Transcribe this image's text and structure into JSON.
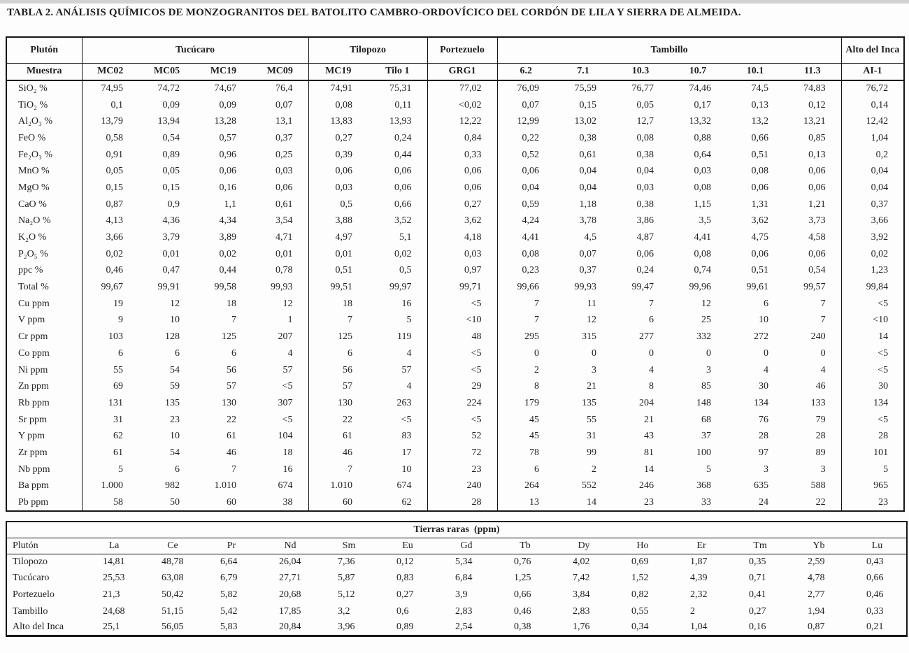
{
  "title": "TABLA 2. ANÁLISIS QUÍMICOS DE MONZOGRANITOS DEL BATOLITO CAMBRO-ORDOVÍCICO DEL CORDÓN DE LILA Y SIERRA DE ALMEIDA.",
  "main_table": {
    "groups": [
      {
        "label": "Plutón",
        "span": 1
      },
      {
        "label": "Tucúcaro",
        "span": 4
      },
      {
        "label": "Tilopozo",
        "span": 2
      },
      {
        "label": "Portezuelo",
        "span": 1
      },
      {
        "label": "Tambillo",
        "span": 6
      },
      {
        "label": "Alto del Inca",
        "span": 1
      }
    ],
    "sample_row_label": "Muestra",
    "samples": [
      "MC02",
      "MC05",
      "MC19",
      "MC09",
      "MC19",
      "Tilo 1",
      "GRG1",
      "6.2",
      "7.1",
      "10.3",
      "10.7",
      "10.1",
      "11.3",
      "AI-1"
    ],
    "rows": [
      {
        "label": "SiO₂ %",
        "values": [
          "74,95",
          "74,72",
          "74,67",
          "76,4",
          "74,91",
          "75,31",
          "77,02",
          "76,09",
          "75,59",
          "76,77",
          "74,46",
          "74,5",
          "74,83",
          "76,72"
        ]
      },
      {
        "label": "TiO₂ %",
        "values": [
          "0,1",
          "0,09",
          "0,09",
          "0,07",
          "0,08",
          "0,11",
          "<0,02",
          "0,07",
          "0,15",
          "0,05",
          "0,17",
          "0,13",
          "0,12",
          "0,14"
        ]
      },
      {
        "label": "Al₂O₃ %",
        "values": [
          "13,79",
          "13,94",
          "13,28",
          "13,1",
          "13,83",
          "13,93",
          "12,22",
          "12,99",
          "13,02",
          "12,7",
          "13,32",
          "13,2",
          "13,21",
          "12,42"
        ]
      },
      {
        "label": "FeO %",
        "values": [
          "0,58",
          "0,54",
          "0,57",
          "0,37",
          "0,27",
          "0,24",
          "0,84",
          "0,22",
          "0,38",
          "0,08",
          "0,88",
          "0,66",
          "0,85",
          "1,04"
        ]
      },
      {
        "label": "Fe₂O₃ %",
        "values": [
          "0,91",
          "0,89",
          "0,96",
          "0,25",
          "0,39",
          "0,44",
          "0,33",
          "0,52",
          "0,61",
          "0,38",
          "0,64",
          "0,51",
          "0,13",
          "0,2"
        ]
      },
      {
        "label": "MnO %",
        "values": [
          "0,05",
          "0,05",
          "0,06",
          "0,03",
          "0,06",
          "0,06",
          "0,06",
          "0,06",
          "0,04",
          "0,04",
          "0,03",
          "0,08",
          "0,06",
          "0,04"
        ]
      },
      {
        "label": "MgO %",
        "values": [
          "0,15",
          "0,15",
          "0,16",
          "0,06",
          "0,03",
          "0,06",
          "0,06",
          "0,04",
          "0,04",
          "0,03",
          "0,08",
          "0,06",
          "0,06",
          "0,04"
        ]
      },
      {
        "label": "CaO %",
        "values": [
          "0,87",
          "0,9",
          "1,1",
          "0,61",
          "0,5",
          "0,66",
          "0,27",
          "0,59",
          "1,18",
          "0,38",
          "1,15",
          "1,31",
          "1,21",
          "0,37"
        ]
      },
      {
        "label": "Na₂O %",
        "values": [
          "4,13",
          "4,36",
          "4,34",
          "3,54",
          "3,88",
          "3,52",
          "3,62",
          "4,24",
          "3,78",
          "3,86",
          "3,5",
          "3,62",
          "3,73",
          "3,66"
        ]
      },
      {
        "label": "K₂O %",
        "values": [
          "3,66",
          "3,79",
          "3,89",
          "4,71",
          "4,97",
          "5,1",
          "4,18",
          "4,41",
          "4,5",
          "4,87",
          "4,41",
          "4,75",
          "4,58",
          "3,92"
        ]
      },
      {
        "label": "P₂O₅ %",
        "values": [
          "0,02",
          "0,01",
          "0,02",
          "0,01",
          "0,01",
          "0,02",
          "0,03",
          "0,08",
          "0,07",
          "0,06",
          "0,08",
          "0,06",
          "0,06",
          "0,02"
        ]
      },
      {
        "label": "ppc %",
        "values": [
          "0,46",
          "0,47",
          "0,44",
          "0,78",
          "0,51",
          "0,5",
          "0,97",
          "0,23",
          "0,37",
          "0,24",
          "0,74",
          "0,51",
          "0,54",
          "1,23"
        ]
      },
      {
        "label": "Total %",
        "values": [
          "99,67",
          "99,91",
          "99,58",
          "99,93",
          "99,51",
          "99,97",
          "99,71",
          "99,66",
          "99,93",
          "99,47",
          "99,96",
          "99,61",
          "99,57",
          "99,84"
        ]
      },
      {
        "label": "Cu ppm",
        "values": [
          "19",
          "12",
          "18",
          "12",
          "18",
          "16",
          "<5",
          "7",
          "11",
          "7",
          "12",
          "6",
          "7",
          "<5"
        ]
      },
      {
        "label": "V ppm",
        "values": [
          "9",
          "10",
          "7",
          "1",
          "7",
          "5",
          "<10",
          "7",
          "12",
          "6",
          "25",
          "10",
          "7",
          "<10"
        ]
      },
      {
        "label": "Cr ppm",
        "values": [
          "103",
          "128",
          "125",
          "207",
          "125",
          "119",
          "48",
          "295",
          "315",
          "277",
          "332",
          "272",
          "240",
          "14"
        ]
      },
      {
        "label": "Co ppm",
        "values": [
          "6",
          "6",
          "6",
          "4",
          "6",
          "4",
          "<5",
          "0",
          "0",
          "0",
          "0",
          "0",
          "0",
          "<5"
        ]
      },
      {
        "label": "Ni ppm",
        "values": [
          "55",
          "54",
          "56",
          "57",
          "56",
          "57",
          "<5",
          "2",
          "3",
          "4",
          "3",
          "4",
          "4",
          "<5"
        ]
      },
      {
        "label": "Zn ppm",
        "values": [
          "69",
          "59",
          "57",
          "<5",
          "57",
          "4",
          "29",
          "8",
          "21",
          "8",
          "85",
          "30",
          "46",
          "30"
        ]
      },
      {
        "label": "Rb ppm",
        "values": [
          "131",
          "135",
          "130",
          "307",
          "130",
          "263",
          "224",
          "179",
          "135",
          "204",
          "148",
          "134",
          "133",
          "134"
        ]
      },
      {
        "label": "Sr ppm",
        "values": [
          "31",
          "23",
          "22",
          "<5",
          "22",
          "<5",
          "<5",
          "45",
          "55",
          "21",
          "68",
          "76",
          "79",
          "<5"
        ]
      },
      {
        "label": "Y ppm",
        "values": [
          "62",
          "10",
          "61",
          "104",
          "61",
          "83",
          "52",
          "45",
          "31",
          "43",
          "37",
          "28",
          "28",
          "28"
        ]
      },
      {
        "label": "Zr ppm",
        "values": [
          "61",
          "54",
          "46",
          "18",
          "46",
          "17",
          "72",
          "78",
          "99",
          "81",
          "100",
          "97",
          "89",
          "101"
        ]
      },
      {
        "label": "Nb ppm",
        "values": [
          "5",
          "6",
          "7",
          "16",
          "7",
          "10",
          "23",
          "6",
          "2",
          "14",
          "5",
          "3",
          "3",
          "5"
        ]
      },
      {
        "label": "Ba ppm",
        "values": [
          "1.000",
          "982",
          "1.010",
          "674",
          "1.010",
          "674",
          "240",
          "264",
          "552",
          "246",
          "368",
          "635",
          "588",
          "965"
        ]
      },
      {
        "label": "Pb ppm",
        "values": [
          "58",
          "50",
          "60",
          "38",
          "60",
          "62",
          "28",
          "13",
          "14",
          "23",
          "33",
          "24",
          "22",
          "23"
        ]
      }
    ]
  },
  "ree_table": {
    "title": "Tierras raras  (ppm)",
    "headers": [
      "Plutón",
      "La",
      "Ce",
      "Pr",
      "Nd",
      "Sm",
      "Eu",
      "Gd",
      "Tb",
      "Dy",
      "Ho",
      "Er",
      "Tm",
      "Yb",
      "Lu"
    ],
    "rows": [
      {
        "label": "Tilopozo",
        "values": [
          "14,81",
          "48,78",
          "6,64",
          "26,04",
          "7,36",
          "0,12",
          "5,34",
          "0,76",
          "4,02",
          "0,69",
          "1,87",
          "0,35",
          "2,59",
          "0,43"
        ]
      },
      {
        "label": "Tucúcaro",
        "values": [
          "25,53",
          "63,08",
          "6,79",
          "27,71",
          "5,87",
          "0,83",
          "6,84",
          "1,25",
          "7,42",
          "1,52",
          "4,39",
          "0,71",
          "4,78",
          "0,66"
        ]
      },
      {
        "label": "Portezuelo",
        "values": [
          "21,3",
          "50,42",
          "5,82",
          "20,68",
          "5,12",
          "0,27",
          "3,9",
          "0,66",
          "3,84",
          "0,82",
          "2,32",
          "0,41",
          "2,77",
          "0,46"
        ]
      },
      {
        "label": "Tambillo",
        "values": [
          "24,68",
          "51,15",
          "5,42",
          "17,85",
          "3,2",
          "0,6",
          "2,83",
          "0,46",
          "2,83",
          "0,55",
          "2",
          "0,27",
          "1,94",
          "0,33"
        ]
      },
      {
        "label": "Alto del Inca",
        "values": [
          "25,1",
          "56,05",
          "5,83",
          "20,84",
          "3,96",
          "0,89",
          "2,54",
          "0,38",
          "1,76",
          "0,34",
          "1,04",
          "0,16",
          "0,87",
          "0,21"
        ]
      }
    ]
  }
}
